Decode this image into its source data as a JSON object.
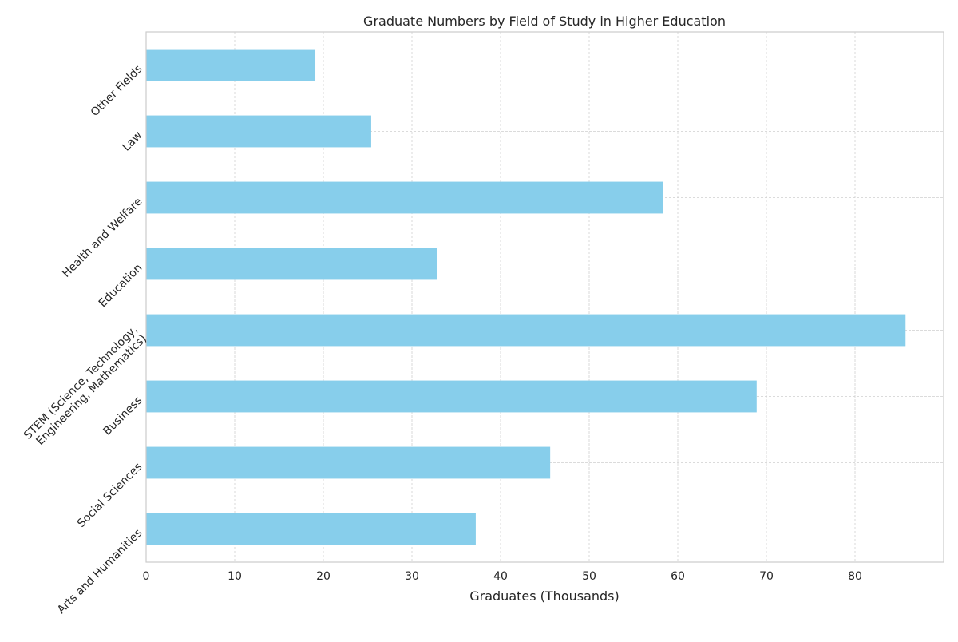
{
  "chart_data": {
    "type": "bar",
    "orientation": "horizontal",
    "title": "Graduate Numbers by Field of Study in Higher Education",
    "xlabel": "Graduates (Thousands)",
    "ylabel": "",
    "xlim": [
      0,
      90
    ],
    "xticks": [
      0,
      10,
      20,
      30,
      40,
      50,
      60,
      70,
      80
    ],
    "grid": true,
    "legend": "none",
    "bar_color": "#87CEEB",
    "categories": [
      "Arts and Humanities",
      "Social Sciences",
      "Business",
      "STEM (Science, Technology,\nEngineering, Mathematics)",
      "Education",
      "Health and Welfare",
      "Law",
      "Other Fields"
    ],
    "values": [
      37.2,
      45.6,
      68.9,
      85.7,
      32.8,
      58.3,
      25.4,
      19.1
    ]
  }
}
